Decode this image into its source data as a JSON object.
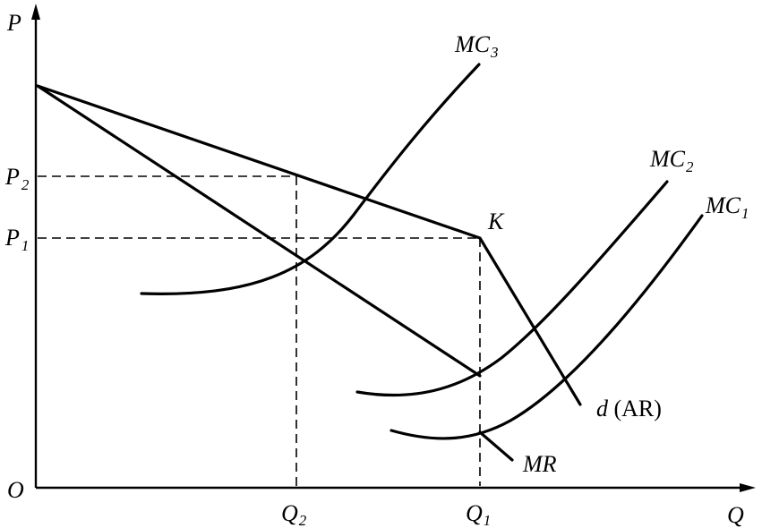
{
  "axes": {
    "x_label": "Q",
    "y_label": "P",
    "origin": "O"
  },
  "price_levels": [
    {
      "name": "P",
      "sub": "1"
    },
    {
      "name": "P",
      "sub": "2"
    }
  ],
  "quantity_levels": [
    {
      "name": "Q",
      "sub": "1"
    },
    {
      "name": "Q",
      "sub": "2"
    }
  ],
  "curves": {
    "demand": {
      "label_letter": "d",
      "label_paren": " (AR)"
    },
    "marginal_revenue": {
      "label": "MR"
    },
    "mc1": {
      "name": "MC",
      "sub": "1"
    },
    "mc2": {
      "name": "MC",
      "sub": "2"
    },
    "mc3": {
      "name": "MC",
      "sub": "3"
    }
  },
  "kink_point": {
    "label": "K"
  }
}
